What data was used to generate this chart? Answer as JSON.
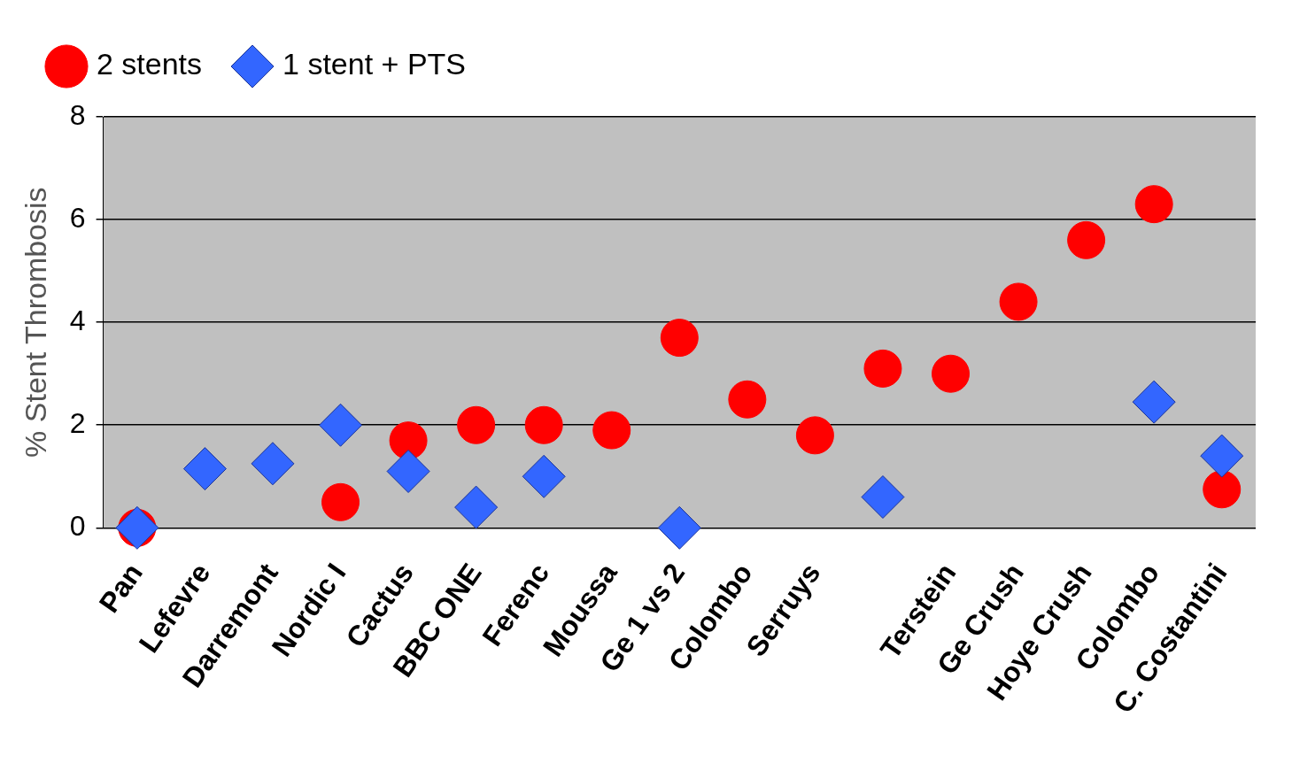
{
  "chart_data": {
    "type": "scatter",
    "ylabel": "% Stent Thrombosis",
    "categories": [
      "Pan",
      "Lefevre",
      "Darremont",
      "Nordic I",
      "Cactus",
      "BBC ONE",
      "Ferenc",
      "Moussa",
      "Ge 1 vs 2",
      "Colombo",
      "Serruys",
      null,
      "Terstein",
      "Ge Crush",
      "Hoye Crush",
      "Colombo",
      "C. Costantini"
    ],
    "series": [
      {
        "name": "2 stents",
        "color": "#ff0000",
        "marker": "circle",
        "values": [
          0,
          null,
          null,
          0.5,
          1.7,
          2.0,
          2.0,
          1.9,
          3.7,
          2.5,
          1.8,
          3.1,
          3.0,
          4.4,
          5.6,
          6.3,
          0.75
        ]
      },
      {
        "name": "1 stent + PTS",
        "color": "#3366ff",
        "marker": "diamond",
        "values": [
          0,
          1.15,
          1.25,
          2.0,
          1.1,
          0.4,
          1.0,
          null,
          0,
          null,
          null,
          0.6,
          null,
          null,
          null,
          2.45,
          1.4
        ]
      }
    ],
    "ylim": [
      0,
      8
    ],
    "yticks": [
      0,
      2,
      4,
      6,
      8
    ],
    "grid": "y",
    "legend": "top left"
  }
}
